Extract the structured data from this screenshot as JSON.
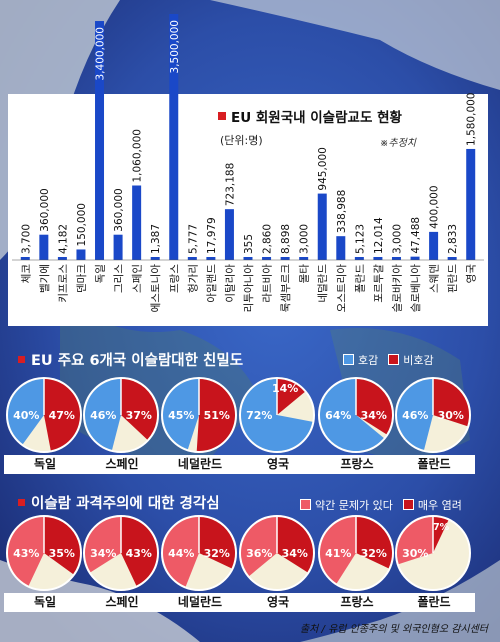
{
  "bar_chart": {
    "title": "EU 회원국내 이슬람교도 현황",
    "unit": "(단위:명)",
    "note": "※추정치"
  },
  "section1": {
    "title": "EU 주요 6개국 이슬람대한 친밀도",
    "legend": [
      "호감",
      "비호감"
    ]
  },
  "section2": {
    "title": "이슬람 과격주의에 대한 경각심",
    "legend": [
      "약간 문제가 있다",
      "매우 염려"
    ]
  },
  "source": "출처 / 유럽 인종주의 및 외국인혐오 감시센터",
  "colors": {
    "bar": "#1a48c8",
    "blue_slice": "#4e98e4",
    "red_slice": "#c8141c",
    "pink_slice": "#ee5a66",
    "cream_slice": "#f5f0da",
    "panel": "#ffffff"
  },
  "chart_data": [
    {
      "type": "bar",
      "title": "EU 회원국내 이슬람교도 현황",
      "unit": "(단위:명)",
      "categories": [
        "체코",
        "벨기에",
        "키프로스",
        "덴마크",
        "독일",
        "그리스",
        "스페인",
        "에스토니아",
        "프랑스",
        "헝가리",
        "아일랜드",
        "이탈리아",
        "리투아니아",
        "라트비아",
        "룩셈부르크",
        "몰타",
        "네덜란드",
        "오스트리아",
        "폴란드",
        "포르투갈",
        "슬로바키아",
        "슬로베니아",
        "스웨덴",
        "핀란드",
        "영국"
      ],
      "values": [
        3700,
        360000,
        4182,
        150000,
        3400000,
        360000,
        1060000,
        1387,
        3500000,
        5777,
        17979,
        723188,
        355,
        2860,
        8898,
        3000,
        945000,
        338988,
        5123,
        12014,
        3000,
        47488,
        400000,
        2833,
        1580000
      ],
      "value_labels": [
        "3,700",
        "360,000",
        "4,182",
        "150,000",
        "3,400,000",
        "360,000",
        "1,060,000",
        "1,387",
        "3,500,000",
        "5,777",
        "17,979",
        "723,188",
        "355",
        "2,860",
        "8,898",
        "3,000",
        "945,000",
        "338,988",
        "5,123",
        "12,014",
        "3,000",
        "47,488",
        "400,000",
        "2,833",
        "1,580,000"
      ]
    },
    {
      "type": "pie",
      "title": "EU 주요 6개국 이슬람대한 친밀도",
      "legend": [
        "호감",
        "비호감"
      ],
      "countries": [
        "독일",
        "스페인",
        "네덜란드",
        "영국",
        "프랑스",
        "폴란드"
      ],
      "series": [
        {
          "name": "호감",
          "values": [
            40,
            46,
            45,
            72,
            64,
            46
          ]
        },
        {
          "name": "비호감",
          "values": [
            47,
            37,
            51,
            14,
            34,
            30
          ]
        }
      ]
    },
    {
      "type": "pie",
      "title": "이슬람 과격주의에 대한 경각심",
      "legend": [
        "약간 문제가 있다",
        "매우 염려"
      ],
      "countries": [
        "독일",
        "스페인",
        "네덜란드",
        "영국",
        "프랑스",
        "폴란드"
      ],
      "series": [
        {
          "name": "약간 문제가 있다",
          "values": [
            43,
            34,
            44,
            36,
            41,
            30
          ]
        },
        {
          "name": "매우 염려",
          "values": [
            35,
            43,
            32,
            34,
            32,
            7
          ]
        }
      ]
    }
  ]
}
